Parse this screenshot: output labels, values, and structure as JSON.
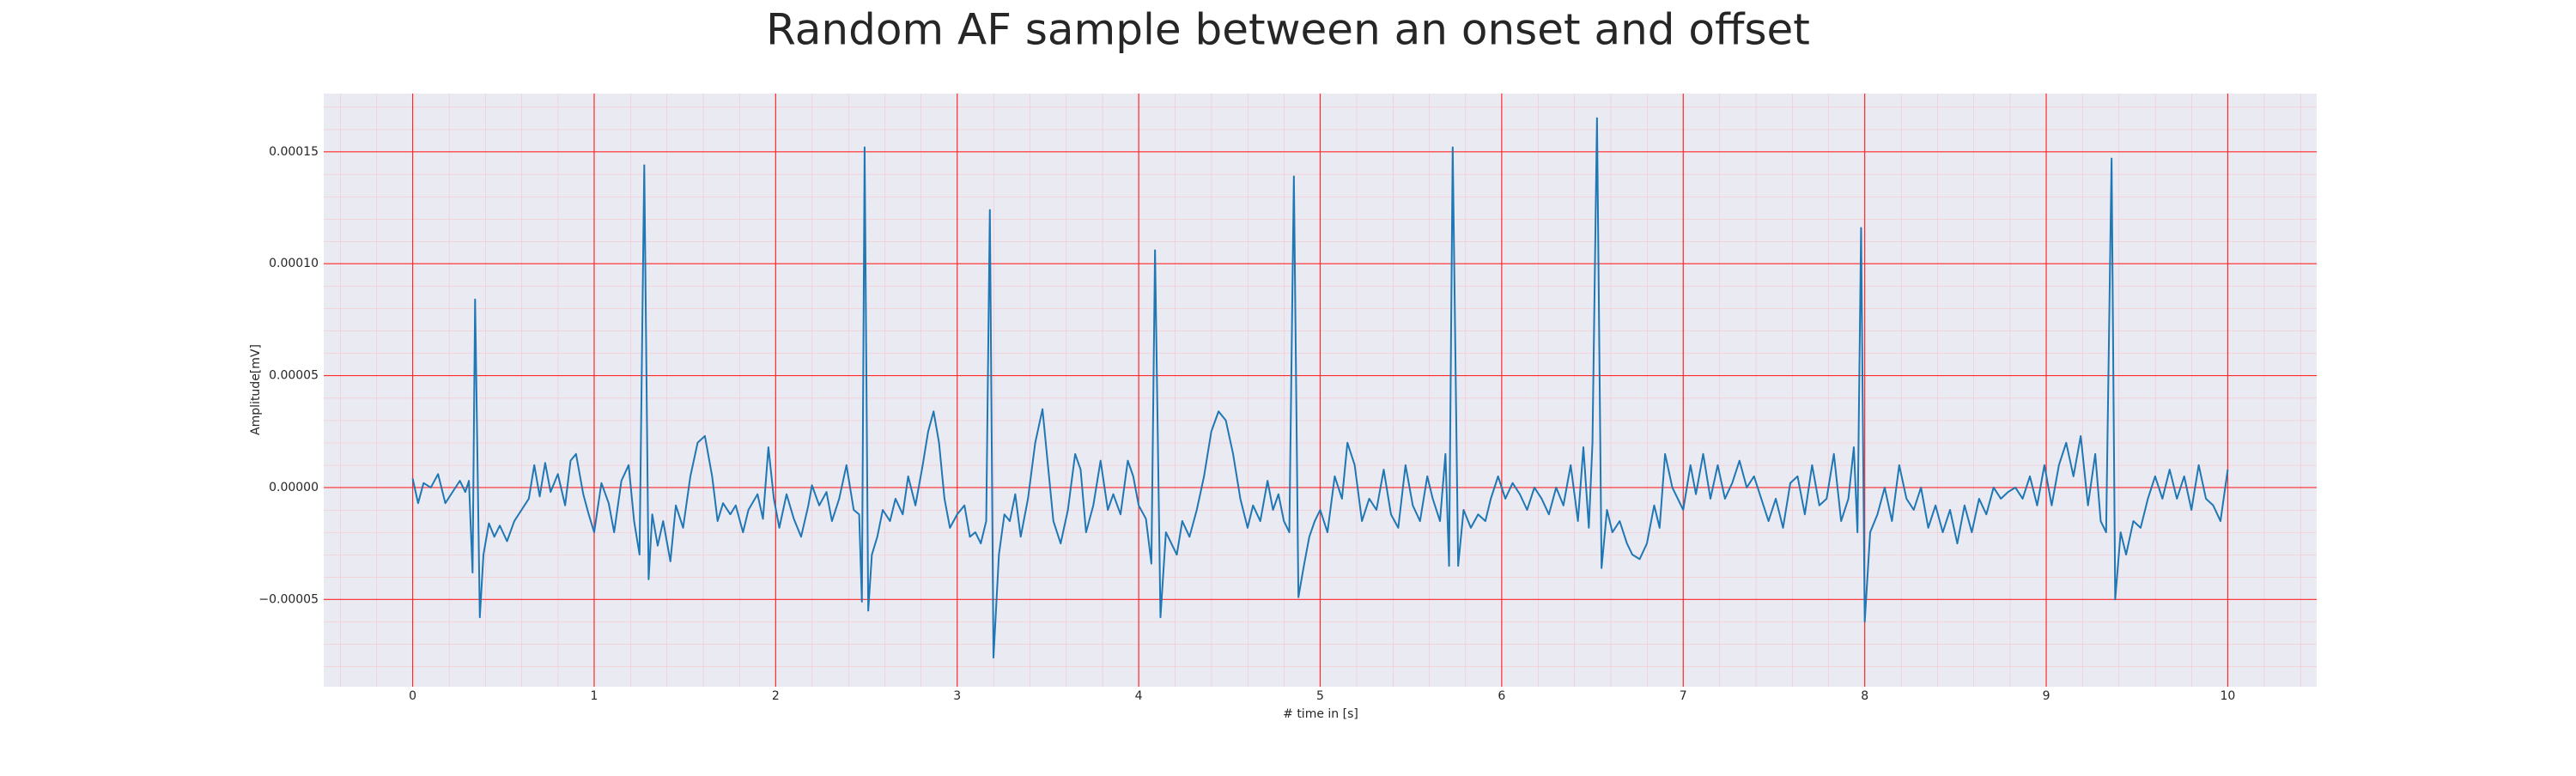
{
  "chart_data": {
    "type": "line",
    "title": "Random AF sample between an onset and offset",
    "xlabel": "# time in [s]",
    "ylabel": "Amplitude[mV]",
    "xlim": [
      -0.49,
      10.49
    ],
    "ylim": [
      -8.9e-05,
      0.000176
    ],
    "xticks": [
      0,
      1,
      2,
      3,
      4,
      5,
      6,
      7,
      8,
      9,
      10
    ],
    "yticks": [
      {
        "value": -5e-05,
        "label": "−0.00005"
      },
      {
        "value": 0,
        "label": "0.00000"
      },
      {
        "value": 5e-05,
        "label": "0.00005"
      },
      {
        "value": 0.0001,
        "label": "0.00010"
      },
      {
        "value": 0.00015,
        "label": "0.00015"
      }
    ],
    "grid": true,
    "minor_grid": true,
    "background": "#eaeaf2",
    "grid_color": "#ff2a2a",
    "minor_grid_color": "#ffb0b8",
    "x": [
      0,
      0.03,
      0.06,
      0.1,
      0.14,
      0.18,
      0.22,
      0.26,
      0.29,
      0.31,
      0.33,
      0.344,
      0.37,
      0.39,
      0.42,
      0.45,
      0.48,
      0.52,
      0.56,
      0.6,
      0.64,
      0.67,
      0.7,
      0.73,
      0.76,
      0.8,
      0.84,
      0.87,
      0.9,
      0.94,
      0.97,
      1.0,
      1.04,
      1.08,
      1.11,
      1.15,
      1.19,
      1.22,
      1.25,
      1.276,
      1.3,
      1.32,
      1.35,
      1.38,
      1.42,
      1.45,
      1.49,
      1.53,
      1.57,
      1.61,
      1.65,
      1.68,
      1.71,
      1.75,
      1.78,
      1.82,
      1.85,
      1.9,
      1.93,
      1.96,
      1.99,
      2.02,
      2.06,
      2.1,
      2.14,
      2.18,
      2.2,
      2.24,
      2.28,
      2.31,
      2.35,
      2.39,
      2.43,
      2.46,
      2.475,
      2.49,
      2.51,
      2.53,
      2.56,
      2.59,
      2.63,
      2.66,
      2.7,
      2.73,
      2.77,
      2.81,
      2.84,
      2.87,
      2.9,
      2.93,
      2.96,
      3.0,
      3.04,
      3.07,
      3.1,
      3.13,
      3.16,
      3.18,
      3.2,
      3.23,
      3.26,
      3.29,
      3.32,
      3.35,
      3.39,
      3.43,
      3.47,
      3.5,
      3.53,
      3.57,
      3.61,
      3.65,
      3.68,
      3.71,
      3.75,
      3.79,
      3.83,
      3.86,
      3.9,
      3.94,
      3.97,
      4.0,
      4.04,
      4.07,
      4.09,
      4.12,
      4.15,
      4.18,
      4.21,
      4.24,
      4.28,
      4.32,
      4.36,
      4.4,
      4.44,
      4.48,
      4.52,
      4.56,
      4.6,
      4.63,
      4.67,
      4.71,
      4.74,
      4.77,
      4.8,
      4.83,
      4.855,
      4.88,
      4.91,
      4.94,
      4.97,
      5.0,
      5.04,
      5.08,
      5.12,
      5.15,
      5.19,
      5.23,
      5.27,
      5.31,
      5.35,
      5.39,
      5.43,
      5.47,
      5.51,
      5.55,
      5.59,
      5.62,
      5.66,
      5.69,
      5.71,
      5.73,
      5.76,
      5.79,
      5.83,
      5.87,
      5.91,
      5.94,
      5.98,
      6.02,
      6.06,
      6.1,
      6.14,
      6.18,
      6.22,
      6.26,
      6.3,
      6.34,
      6.38,
      6.42,
      6.45,
      6.48,
      6.5,
      6.525,
      6.55,
      6.58,
      6.61,
      6.65,
      6.69,
      6.72,
      6.76,
      6.8,
      6.84,
      6.87,
      6.9,
      6.94,
      6.97,
      7.0,
      7.04,
      7.07,
      7.11,
      7.15,
      7.19,
      7.23,
      7.27,
      7.31,
      7.35,
      7.39,
      7.43,
      7.47,
      7.51,
      7.55,
      7.59,
      7.63,
      7.67,
      7.71,
      7.75,
      7.79,
      7.83,
      7.87,
      7.91,
      7.94,
      7.96,
      7.98,
      8.0,
      8.03,
      8.07,
      8.11,
      8.15,
      8.19,
      8.23,
      8.27,
      8.31,
      8.35,
      8.39,
      8.43,
      8.47,
      8.51,
      8.55,
      8.59,
      8.63,
      8.67,
      8.71,
      8.75,
      8.79,
      8.83,
      8.87,
      8.91,
      8.95,
      8.99,
      9.03,
      9.07,
      9.11,
      9.15,
      9.19,
      9.23,
      9.27,
      9.3,
      9.33,
      9.36,
      9.38,
      9.41,
      9.44,
      9.48,
      9.52,
      9.56,
      9.6,
      9.64,
      9.68,
      9.72,
      9.76,
      9.8,
      9.84,
      9.88,
      9.92,
      9.96,
      10.0
    ],
    "series": [
      {
        "color": "#1f77b4",
        "values": [
          4e-06,
          -7e-06,
          2e-06,
          0,
          6e-06,
          -7e-06,
          -2e-06,
          3e-06,
          -2e-06,
          3e-06,
          -3.8e-05,
          8.4e-05,
          -5.8e-05,
          -3e-05,
          -1.6e-05,
          -2.2e-05,
          -1.7e-05,
          -2.4e-05,
          -1.5e-05,
          -1e-05,
          -5e-06,
          1e-05,
          -4e-06,
          1.1e-05,
          -2e-06,
          6e-06,
          -8e-06,
          1.2e-05,
          1.5e-05,
          -3e-06,
          -1.2e-05,
          -2e-05,
          2e-06,
          -7e-06,
          -2e-05,
          3e-06,
          1e-05,
          -1.5e-05,
          -3e-05,
          0.000144,
          -4.1e-05,
          -1.2e-05,
          -2.6e-05,
          -1.5e-05,
          -3.3e-05,
          -8e-06,
          -1.8e-05,
          5e-06,
          2e-05,
          2.3e-05,
          5e-06,
          -1.5e-05,
          -7e-06,
          -1.2e-05,
          -8e-06,
          -2e-05,
          -1e-05,
          -3e-06,
          -1.4e-05,
          1.8e-05,
          -5e-06,
          -1.8e-05,
          -3e-06,
          -1.4e-05,
          -2.2e-05,
          -8e-06,
          1e-06,
          -8e-06,
          -2e-06,
          -1.5e-05,
          -5e-06,
          1e-05,
          -1e-05,
          -1.2e-05,
          -5.1e-05,
          0.000152,
          -5.5e-05,
          -3e-05,
          -2.2e-05,
          -1e-05,
          -1.5e-05,
          -5e-06,
          -1.2e-05,
          5e-06,
          -8e-06,
          1e-05,
          2.5e-05,
          3.4e-05,
          2e-05,
          -5e-06,
          -1.8e-05,
          -1.2e-05,
          -8e-06,
          -2.2e-05,
          -2e-05,
          -2.5e-05,
          -1.5e-05,
          0.000124,
          -7.6e-05,
          -3e-05,
          -1.2e-05,
          -1.5e-05,
          -3e-06,
          -2.2e-05,
          -5e-06,
          2e-05,
          3.5e-05,
          1e-05,
          -1.5e-05,
          -2.5e-05,
          -1e-05,
          1.5e-05,
          8e-06,
          -2e-05,
          -8e-06,
          1.2e-05,
          -1e-05,
          -3e-06,
          -1.2e-05,
          1.2e-05,
          5e-06,
          -8e-06,
          -1.4e-05,
          -3.4e-05,
          0.000106,
          -5.8e-05,
          -2e-05,
          -2.5e-05,
          -3e-05,
          -1.5e-05,
          -2.2e-05,
          -1e-05,
          5e-06,
          2.5e-05,
          3.4e-05,
          3e-05,
          1.5e-05,
          -5e-06,
          -1.8e-05,
          -8e-06,
          -1.5e-05,
          3e-06,
          -1e-05,
          -3e-06,
          -1.5e-05,
          -2e-05,
          0.000139,
          -4.9e-05,
          -3.5e-05,
          -2.2e-05,
          -1.5e-05,
          -1e-05,
          -2e-05,
          5e-06,
          -5e-06,
          2e-05,
          1e-05,
          -1.5e-05,
          -5e-06,
          -1e-05,
          8e-06,
          -1.2e-05,
          -1.8e-05,
          1e-05,
          -8e-06,
          -1.5e-05,
          5e-06,
          -5e-06,
          -1.5e-05,
          1.5e-05,
          -3.5e-05,
          0.000152,
          -3.5e-05,
          -1e-05,
          -1.8e-05,
          -1.2e-05,
          -1.5e-05,
          -5e-06,
          5e-06,
          -5e-06,
          2e-06,
          -3e-06,
          -1e-05,
          0,
          -5e-06,
          -1.2e-05,
          0,
          -8e-06,
          1e-05,
          -1.5e-05,
          1.8e-05,
          -1.8e-05,
          2e-05,
          0.000165,
          -3.6e-05,
          -1e-05,
          -2e-05,
          -1.5e-05,
          -2.5e-05,
          -3e-05,
          -3.2e-05,
          -2.5e-05,
          -8e-06,
          -1.8e-05,
          1.5e-05,
          0,
          -5e-06,
          -1e-05,
          1e-05,
          -3e-06,
          1.5e-05,
          -5e-06,
          1e-05,
          -5e-06,
          2e-06,
          1.2e-05,
          0,
          5e-06,
          -5e-06,
          -1.5e-05,
          -5e-06,
          -1.8e-05,
          2e-06,
          5e-06,
          -1.2e-05,
          1e-05,
          -8e-06,
          -5e-06,
          1.5e-05,
          -1.5e-05,
          -5e-06,
          1.8e-05,
          -2e-05,
          0.000116,
          -6e-05,
          -2e-05,
          -1.2e-05,
          0,
          -1.5e-05,
          1e-05,
          -5e-06,
          -1e-05,
          0,
          -1.8e-05,
          -8e-06,
          -2e-05,
          -1e-05,
          -2.5e-05,
          -8e-06,
          -2e-05,
          -5e-06,
          -1.2e-05,
          0,
          -5e-06,
          -2e-06,
          0,
          -5e-06,
          5e-06,
          -8e-06,
          1e-05,
          -8e-06,
          1e-05,
          2e-05,
          5e-06,
          2.3e-05,
          -8e-06,
          1.5e-05,
          -1.5e-05,
          -2e-05,
          0.000147,
          -5e-05,
          -2e-05,
          -3e-05,
          -1.5e-05,
          -1.8e-05,
          -5e-06,
          5e-06,
          -5e-06,
          8e-06,
          -5e-06,
          5e-06,
          -1e-05,
          1e-05,
          -5e-06,
          -8e-06,
          -1.5e-05,
          8e-06
        ]
      }
    ]
  }
}
